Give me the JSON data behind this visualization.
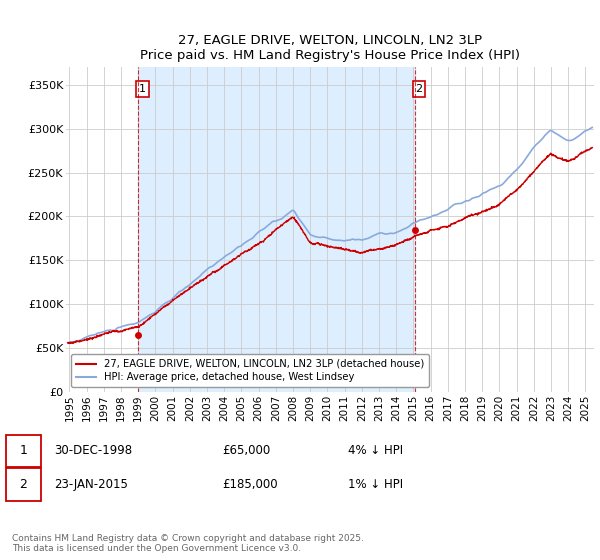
{
  "title1": "27, EAGLE DRIVE, WELTON, LINCOLN, LN2 3LP",
  "title2": "Price paid vs. HM Land Registry's House Price Index (HPI)",
  "ylabel_values": [
    "£0",
    "£50K",
    "£100K",
    "£150K",
    "£200K",
    "£250K",
    "£300K",
    "£350K"
  ],
  "yticks": [
    0,
    50000,
    100000,
    150000,
    200000,
    250000,
    300000,
    350000
  ],
  "ylim": [
    0,
    370000
  ],
  "xlim_start": 1994.8,
  "xlim_end": 2025.5,
  "legend_line1": "27, EAGLE DRIVE, WELTON, LINCOLN, LN2 3LP (detached house)",
  "legend_line2": "HPI: Average price, detached house, West Lindsey",
  "annotation1_label": "1",
  "annotation1_date": "30-DEC-1998",
  "annotation1_price": "£65,000",
  "annotation1_hpi": "4% ↓ HPI",
  "annotation2_label": "2",
  "annotation2_date": "23-JAN-2015",
  "annotation2_price": "£185,000",
  "annotation2_hpi": "1% ↓ HPI",
  "footer": "Contains HM Land Registry data © Crown copyright and database right 2025.\nThis data is licensed under the Open Government Licence v3.0.",
  "line_color_red": "#cc0000",
  "line_color_blue": "#88aadd",
  "shade_color": "#ddeeff",
  "grid_color": "#cccccc",
  "annotation_vline_color": "#cc0000",
  "sale1_x": 1998.99,
  "sale1_y": 65000,
  "sale2_x": 2015.07,
  "sale2_y": 185000,
  "background_color": "#ffffff"
}
